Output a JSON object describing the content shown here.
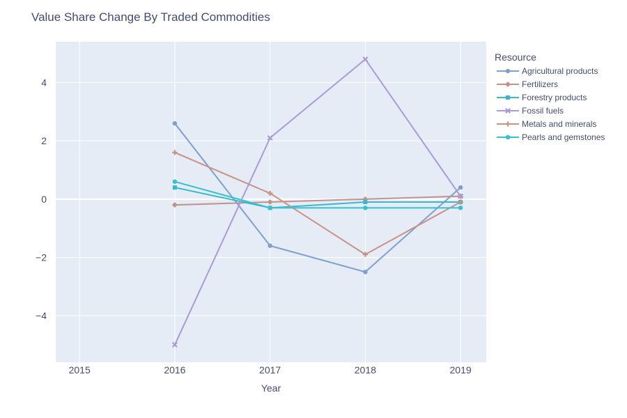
{
  "chart_data": {
    "type": "line",
    "title": "Value Share Change By Traded Commodities",
    "xlabel": "Year",
    "ylabel": "",
    "x": [
      2016,
      2017,
      2018,
      2019
    ],
    "xticks": [
      "2015",
      "2016",
      "2017",
      "2018",
      "2019"
    ],
    "xlim": [
      2014.75,
      2019.27
    ],
    "yticks": [
      "−4",
      "−2",
      "0",
      "2",
      "4"
    ],
    "ylim": [
      -5.6,
      5.4
    ],
    "grid": true,
    "legend_title": "Resource",
    "legend_position": "top-right outside",
    "plot_background": "#e5ecf6",
    "series": [
      {
        "name": "Agricultural products",
        "color": "#7f9fd0",
        "marker": "circle",
        "values": [
          2.6,
          -1.6,
          -2.5,
          0.4
        ]
      },
      {
        "name": "Fertilizers",
        "color": "#c0928a",
        "marker": "diamond",
        "values": [
          -0.2,
          -0.1,
          0.0,
          0.1
        ]
      },
      {
        "name": "Forestry products",
        "color": "#3bb8c8",
        "marker": "square",
        "values": [
          0.4,
          -0.3,
          -0.1,
          -0.1
        ]
      },
      {
        "name": "Fossil fuels",
        "color": "#a99ad9",
        "marker": "x",
        "values": [
          -5.0,
          2.1,
          4.8,
          0.1
        ]
      },
      {
        "name": "Metals and minerals",
        "color": "#c99284",
        "marker": "cross",
        "values": [
          1.6,
          0.2,
          -1.9,
          -0.1
        ]
      },
      {
        "name": "Pearls and gemstones",
        "color": "#36c1cf",
        "marker": "hexagon",
        "values": [
          0.6,
          -0.3,
          -0.3,
          -0.3
        ]
      }
    ]
  }
}
